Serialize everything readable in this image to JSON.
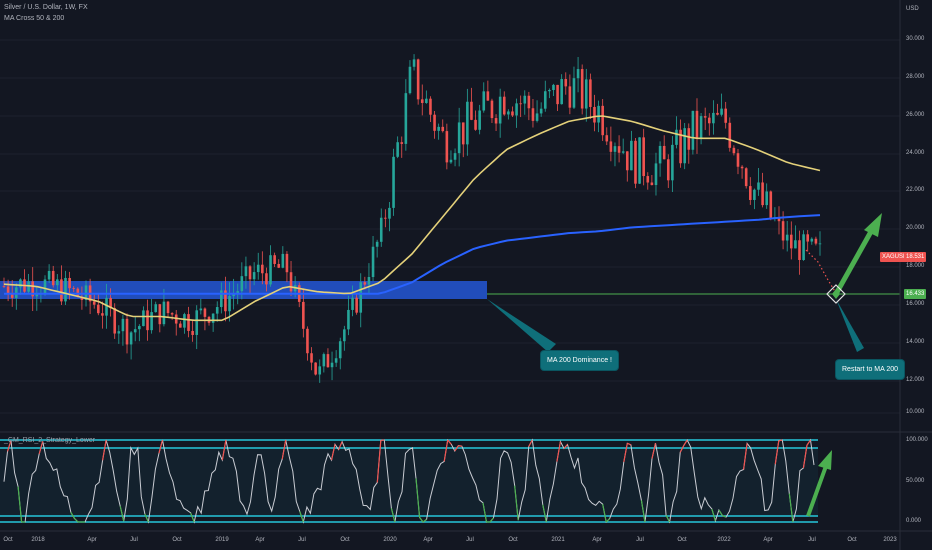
{
  "header": {
    "symbol_line": "Silver / U.S. Dollar, 1W, FX",
    "indicator_label": "MA Cross 50 & 200",
    "oscillator_label": "_CM_RSI_2_Strategy_Lower"
  },
  "price_axis": {
    "currency": "USD",
    "ticks": [
      "30.000",
      "28.000",
      "26.000",
      "24.000",
      "22.000",
      "20.000",
      "18.000",
      "16.000",
      "14.000",
      "12.000",
      "10.000"
    ]
  },
  "price_tags": {
    "symbol_tag": "XAGUSD",
    "last_price": "18.531",
    "level_price": "16.433"
  },
  "oscillator_axis": {
    "ticks": [
      "100.000",
      "50.000",
      "0.000"
    ]
  },
  "time_axis": {
    "ticks": [
      "Oct",
      "2018",
      "Apr",
      "Jul",
      "Oct",
      "2019",
      "Apr",
      "Jul",
      "Oct",
      "2020",
      "Apr",
      "Jul",
      "Oct",
      "2021",
      "Apr",
      "Jul",
      "Oct",
      "2022",
      "Apr",
      "Jul",
      "Oct",
      "2023"
    ]
  },
  "callouts": {
    "ma200": "MA 200 Dominance !",
    "restart": "Restart to MA 200"
  },
  "colors": {
    "background": "#131722",
    "bull": "#26a69a",
    "bear": "#ef5350",
    "ma50": "#e4d17a",
    "ma200": "#2962ff",
    "zone": "#2457d6",
    "level": "#4caf50",
    "cyan": "#26c6da",
    "arrow": "#4caf50"
  },
  "chart_data": {
    "type": "line",
    "title": "Silver / U.S. Dollar, 1W, FX",
    "x": [
      "2017-10",
      "2018-01",
      "2018-04",
      "2018-07",
      "2018-10",
      "2019-01",
      "2019-04",
      "2019-07",
      "2019-10",
      "2020-01",
      "2020-03",
      "2020-04",
      "2020-07",
      "2020-08",
      "2020-10",
      "2021-01",
      "2021-02",
      "2021-04",
      "2021-06",
      "2021-07",
      "2021-10",
      "2022-01",
      "2022-03",
      "2022-04",
      "2022-06",
      "2022-07",
      "2022-08"
    ],
    "series": [
      {
        "name": "close",
        "values": [
          16.8,
          17.0,
          16.6,
          15.8,
          14.4,
          15.5,
          15.0,
          16.0,
          17.5,
          17.8,
          12.0,
          15.0,
          19.5,
          28.0,
          24.5,
          25.5,
          27.0,
          26.0,
          27.5,
          26.0,
          23.5,
          23.0,
          25.0,
          25.5,
          21.5,
          19.0,
          18.5
        ]
      },
      {
        "name": "MA 50",
        "values": [
          16.9,
          16.8,
          16.4,
          16.0,
          15.2,
          15.2,
          15.0,
          15.0,
          16.0,
          16.8,
          16.5,
          16.4,
          17.0,
          18.5,
          20.5,
          22.5,
          24.0,
          24.8,
          25.5,
          25.8,
          25.5,
          25.0,
          24.6,
          24.6,
          24.0,
          23.3,
          22.9
        ]
      },
      {
        "name": "MA 200",
        "values": [
          16.4,
          16.4,
          16.4,
          16.4,
          16.4,
          16.4,
          16.4,
          16.4,
          16.4,
          16.4,
          16.4,
          16.4,
          16.4,
          17.0,
          18.0,
          18.8,
          19.2,
          19.4,
          19.6,
          19.7,
          19.9,
          20.0,
          20.1,
          20.2,
          20.3,
          20.45,
          20.55
        ]
      }
    ],
    "ylim": [
      10,
      30
    ],
    "level": 16.433,
    "last_price": 18.531
  }
}
